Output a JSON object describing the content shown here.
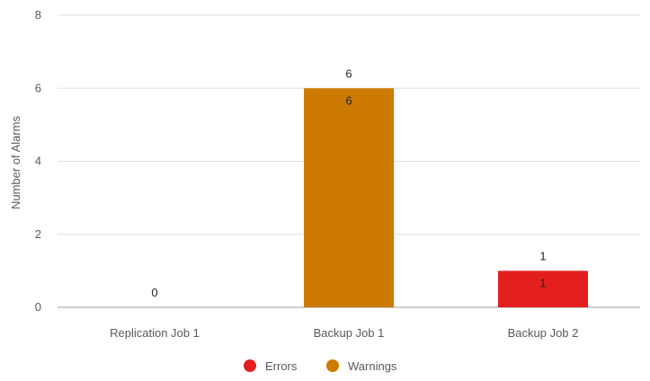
{
  "chart_data": {
    "type": "bar",
    "stacked": true,
    "title": "",
    "xlabel": "",
    "ylabel": "Number of Alarms",
    "ylim": [
      0,
      8
    ],
    "yticks": [
      0,
      2,
      4,
      6,
      8
    ],
    "grid": true,
    "legend_position": "bottom",
    "categories": [
      "Replication Job 1",
      "Backup Job 1",
      "Backup Job 2"
    ],
    "series": [
      {
        "name": "Errors",
        "color": "#e31e1e",
        "values": [
          0,
          0,
          1
        ]
      },
      {
        "name": "Warnings",
        "color": "#cc7a00",
        "values": [
          0,
          6,
          0
        ]
      }
    ],
    "totals": [
      0,
      6,
      1
    ]
  }
}
